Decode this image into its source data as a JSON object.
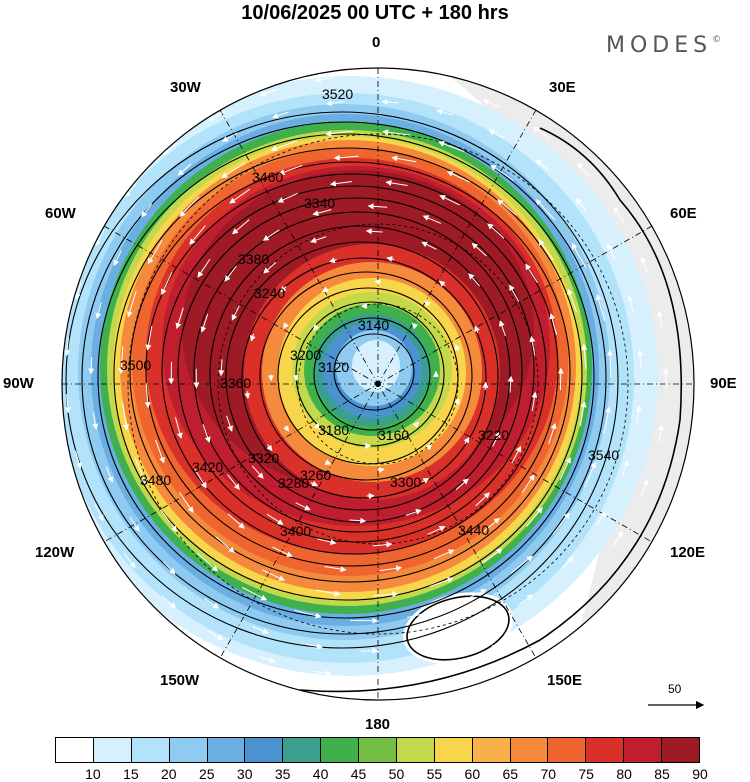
{
  "title": "10/06/2025  00 UTC  + 180 hrs",
  "brand": "MODES",
  "brand_mark": "©",
  "longitude_labels": {
    "lon_0": "0",
    "lon_30e": "30E",
    "lon_60e": "60E",
    "lon_90e": "90E",
    "lon_120e": "120E",
    "lon_150e": "150E",
    "lon_180": "180",
    "lon_150w": "150W",
    "lon_120w": "120W",
    "lon_90w": "90W",
    "lon_60w": "60W",
    "lon_30w": "30W"
  },
  "vector_scale_label": "50",
  "colorbar": {
    "colors": [
      "#ffffff",
      "#d6f1fd",
      "#b3e3fb",
      "#8fcbf0",
      "#6aaee2",
      "#4b93cf",
      "#3a9f8f",
      "#3fb04c",
      "#74c046",
      "#c3d94b",
      "#f8d64c",
      "#f7b04a",
      "#f58a3c",
      "#ef6530",
      "#d9302a",
      "#be1e2d",
      "#9e1a24"
    ],
    "labels": [
      "10",
      "15",
      "20",
      "25",
      "30",
      "35",
      "40",
      "45",
      "50",
      "55",
      "60",
      "65",
      "70",
      "75",
      "80",
      "85",
      "90"
    ]
  },
  "chart_data": {
    "type": "contour",
    "projection": "north polar stereographic",
    "field": "geopotential height contours with wind speed shading and wind vectors",
    "contour_labels": [
      "3120",
      "3140",
      "3160",
      "3180",
      "3200",
      "3220",
      "3240",
      "3260",
      "3280",
      "3300",
      "3320",
      "3340",
      "3360",
      "3380",
      "3400",
      "3420",
      "3440",
      "3460",
      "3480",
      "3500",
      "3520",
      "3540"
    ],
    "shading_levels": [
      10,
      15,
      20,
      25,
      30,
      35,
      40,
      45,
      50,
      55,
      60,
      65,
      70,
      75,
      80,
      85,
      90
    ],
    "vector_reference": 50
  }
}
